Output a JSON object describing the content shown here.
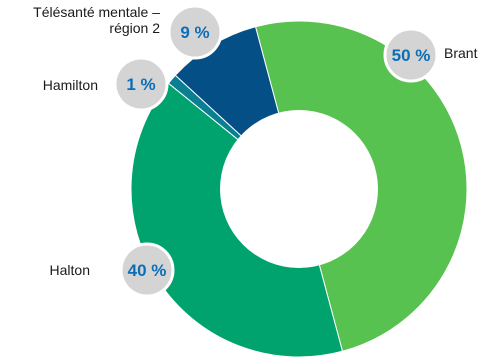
{
  "chart_data": {
    "type": "pie",
    "style": "donut",
    "title": "",
    "slices": [
      {
        "label": "Brant",
        "value": 50,
        "display": "50 %",
        "color": "#57c24f"
      },
      {
        "label": "Halton",
        "value": 40,
        "display": "40 %",
        "color": "#00a36e"
      },
      {
        "label": "Hamilton",
        "value": 1,
        "display": "1 %",
        "color": "#0b7f92"
      },
      {
        "label": "Télésanté mentale – région 2",
        "label_lines": [
          "Télésanté mentale –",
          "région 2"
        ],
        "value": 9,
        "display": "9 %",
        "color": "#034f86"
      }
    ]
  },
  "colors": {
    "badge_fill": "#d4d4d4",
    "badge_stroke": "#ffffff",
    "badge_text": "#0b6fb8",
    "label_text": "#1a1a1a"
  }
}
